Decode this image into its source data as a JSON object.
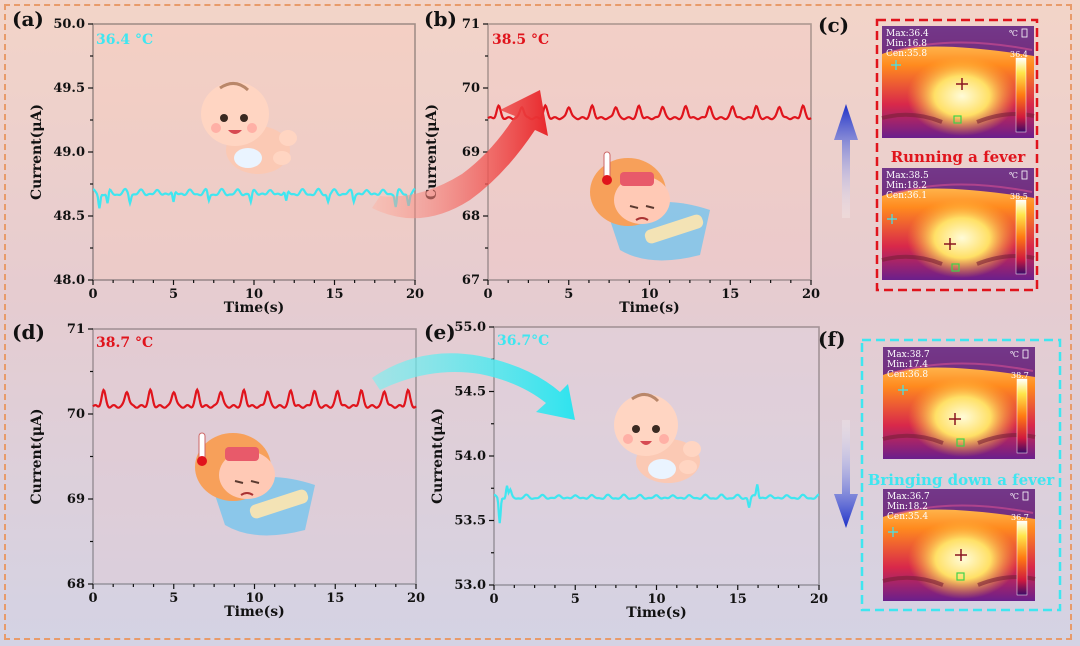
{
  "panels": {
    "a": {
      "label": "(a)",
      "temp": "36.4 °C",
      "temp_color": "#3fe6f0"
    },
    "b": {
      "label": "(b)",
      "temp": "38.5 °C",
      "temp_color": "#e0141c"
    },
    "c": {
      "label": "(c)",
      "caption": "Running a fever",
      "caption_color": "#e0141c",
      "top": {
        "max": "Max:36.4",
        "min": "Min:16.8",
        "cen": "Cen:35.8",
        "scale": "36.4"
      },
      "bottom": {
        "max": "Max:38.5",
        "min": "Min:18.2",
        "cen": "Cen:36.1",
        "scale": "38.5"
      }
    },
    "d": {
      "label": "(d)",
      "temp": "38.7 °C",
      "temp_color": "#e0141c"
    },
    "e": {
      "label": "(e)",
      "temp": "36.7°C",
      "temp_color": "#3fe6f0"
    },
    "f": {
      "label": "(f)",
      "caption": "Bringing down a fever",
      "caption_color": "#3fe6f0",
      "top": {
        "max": "Max:38.7",
        "min": "Min:17.4",
        "cen": "Cen:36.8",
        "scale": "38.7"
      },
      "bottom": {
        "max": "Max:36.7",
        "min": "Min:18.2",
        "cen": "Cen:35.4",
        "scale": "36.7"
      }
    },
    "unit_icon": "℃"
  },
  "chart_data": [
    {
      "id": "a",
      "type": "line",
      "xlabel": "Time(s)",
      "ylabel": "Current(μA)",
      "xlim": [
        0,
        20
      ],
      "ylim": [
        48.0,
        50.0
      ],
      "xticks": [
        0,
        5,
        10,
        15,
        20
      ],
      "yticks": [
        48.0,
        48.5,
        49.0,
        49.5,
        50.0
      ],
      "ytick_labels": [
        "48.0",
        "48.5",
        "49.0",
        "49.5",
        "50.0"
      ],
      "series": [
        {
          "name": "36.4 °C",
          "color": "#3fe6f0",
          "baseline": 48.68,
          "amplitude": 0.03,
          "period": 1.0,
          "dips": [
            [
              0.4,
              48.56
            ],
            [
              0.9,
              48.6
            ],
            [
              2.3,
              48.6
            ],
            [
              5.0,
              48.61
            ],
            [
              7.2,
              48.62
            ],
            [
              9.8,
              48.61
            ],
            [
              12.0,
              48.62
            ],
            [
              14.6,
              48.61
            ],
            [
              16.2,
              48.61
            ],
            [
              18.8,
              48.57
            ],
            [
              19.6,
              48.58
            ]
          ]
        }
      ]
    },
    {
      "id": "b",
      "type": "line",
      "xlabel": "Time(s)",
      "ylabel": "Current(μA)",
      "xlim": [
        0,
        20
      ],
      "ylim": [
        67,
        71
      ],
      "xticks": [
        0,
        5,
        10,
        15,
        20
      ],
      "yticks": [
        67,
        68,
        69,
        70,
        71
      ],
      "ytick_labels": [
        "67",
        "68",
        "69",
        "70",
        "71"
      ],
      "series": [
        {
          "name": "38.5 °C",
          "color": "#e0141c",
          "baseline": 69.62,
          "amplitude": 0.13,
          "period": 1.45,
          "dips": []
        }
      ]
    },
    {
      "id": "d",
      "type": "line",
      "xlabel": "Time(s)",
      "ylabel": "Current(μA)",
      "xlim": [
        0,
        20
      ],
      "ylim": [
        68,
        71
      ],
      "xticks": [
        0,
        5,
        10,
        15,
        20
      ],
      "yticks": [
        68,
        69,
        70,
        71
      ],
      "ytick_labels": [
        "68",
        "69",
        "70",
        "71"
      ],
      "series": [
        {
          "name": "38.7 °C",
          "color": "#e0141c",
          "baseline": 70.18,
          "amplitude": 0.13,
          "period": 1.45,
          "dips": []
        }
      ]
    },
    {
      "id": "e",
      "type": "line",
      "xlabel": "Time(s)",
      "ylabel": "Current(μA)",
      "xlim": [
        0,
        20
      ],
      "ylim": [
        53.0,
        55.0
      ],
      "xticks": [
        0,
        5,
        10,
        15,
        20
      ],
      "yticks": [
        53.0,
        53.5,
        54.0,
        54.5,
        55.0
      ],
      "ytick_labels": [
        "53.0",
        "53.5",
        "54.0",
        "54.5",
        "55.0"
      ],
      "series": [
        {
          "name": "36.7°C",
          "color": "#3fe6f0",
          "baseline": 53.68,
          "amplitude": 0.02,
          "period": 1.0,
          "dips": [
            [
              0.35,
              53.48
            ],
            [
              0.8,
              53.77
            ],
            [
              1.0,
              53.74
            ],
            [
              15.7,
              53.6
            ],
            [
              16.2,
              53.78
            ]
          ]
        }
      ]
    }
  ]
}
